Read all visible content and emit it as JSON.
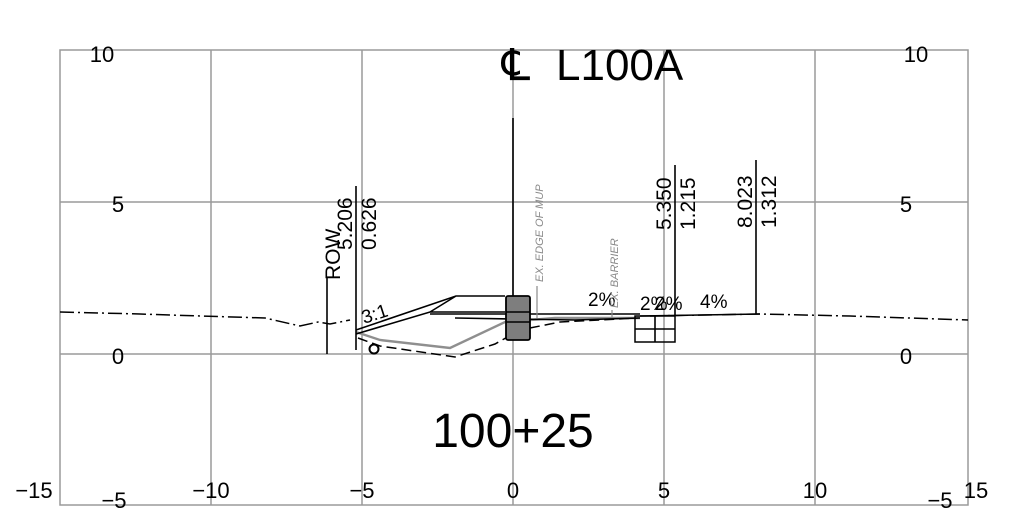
{
  "centerline": {
    "symbol": "℄",
    "name": "L100A"
  },
  "station": "100+25",
  "axes": {
    "x_ticks": [
      "−15",
      "−10",
      "−5",
      "0",
      "5",
      "10",
      "15"
    ],
    "y_left_ticks": [
      "10",
      "5",
      "0",
      "−5"
    ],
    "y_right_ticks": [
      "10",
      "5",
      "0",
      "−5"
    ]
  },
  "labels": {
    "row": "ROW",
    "offset_left": "5.206",
    "elev_left": "0.626",
    "offset_mid": "5.350",
    "elev_mid": "1.215",
    "offset_right": "8.023",
    "elev_right": "1.312",
    "slope_ratio": "3:1",
    "slope_a": "2%",
    "slope_b": "2%",
    "slope_c": "2%",
    "slope_d": "4%",
    "note_mup": "EX. EDGE OF MUP",
    "note_barrier": "EX. BARRIER"
  }
}
